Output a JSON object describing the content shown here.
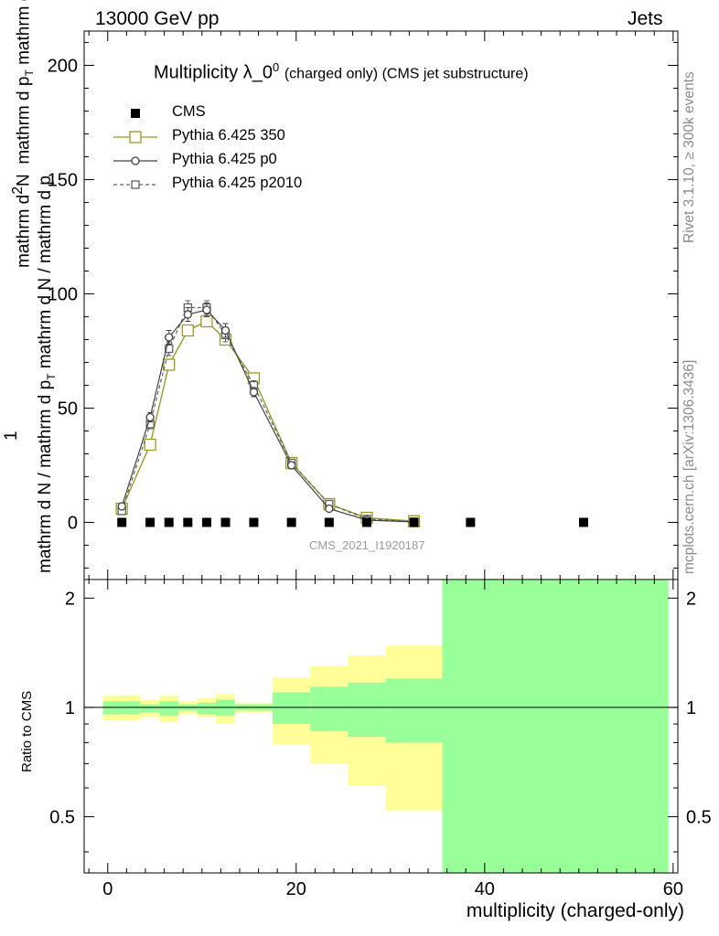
{
  "header": {
    "left": "13000 GeV pp",
    "right": "Jets"
  },
  "title": {
    "main": "Multiplicity λ_0",
    "sup": "0",
    "sub": "(charged only) (CMS jet substructure)"
  },
  "side_labels": {
    "rivet": "Rivet 3.1.10, ≥ 300k events",
    "mcplots": "mcplots.cern.ch [arXiv:1306.3436]"
  },
  "watermark": "CMS_2021_I1920187",
  "axis_labels": {
    "x": "multiplicity (charged-only)",
    "y_ratio": "Ratio to CMS",
    "y_main_one": "1",
    "y_main_top": "mathrm d",
    "y_main_top_sup": "2",
    "y_main_top_end": "N",
    "y_main_mid": "mathrm d p",
    "y_main_mid_sub": "T",
    "y_main_mid_end": " mathrm d lambda",
    "y_main_bottom": "mathrm d N / mathrm d p",
    "y_main_bottom_sub": "T",
    "y_main_bottom_end": " mathrm d N / mathrm d p"
  },
  "legend": [
    {
      "label": "CMS",
      "color": "#000000",
      "style": "filled-square"
    },
    {
      "label": "Pythia 6.425 350",
      "color": "#9a9a20",
      "style": "open-square-solid"
    },
    {
      "label": "Pythia 6.425 p0",
      "color": "#404040",
      "style": "open-circle-solid"
    },
    {
      "label": "Pythia 6.425 p2010",
      "color": "#606060",
      "style": "open-square-dashed"
    }
  ],
  "chart_data": [
    {
      "type": "line",
      "panel": "main",
      "title": "Multiplicity λ_0^0 (charged only) (CMS jet substructure)",
      "xlabel": "multiplicity (charged-only)",
      "ylabel": "1/N dN/dp_T dp_T dλ",
      "xlim": [
        -2.5,
        60.5
      ],
      "ylim": [
        -25,
        215
      ],
      "xticks": [
        0,
        20,
        40,
        60
      ],
      "yticks": [
        0,
        50,
        100,
        150,
        200
      ],
      "series": [
        {
          "name": "CMS",
          "x": [
            1.5,
            4.5,
            6.5,
            8.5,
            10.5,
            12.5,
            15.5,
            19.5,
            23.5,
            27.5,
            32.5,
            38.5,
            50.5
          ],
          "y": [
            0,
            0,
            0,
            0,
            0,
            0,
            0,
            0,
            0,
            0,
            0,
            0,
            0
          ]
        },
        {
          "name": "Pythia 6.425 350",
          "x": [
            1.5,
            4.5,
            6.5,
            8.5,
            10.5,
            12.5,
            15.5,
            19.5,
            23.5,
            27.5,
            32.5
          ],
          "y": [
            6,
            34,
            69,
            84,
            88,
            80,
            63,
            26,
            8,
            2,
            0.5
          ],
          "yerr": [
            0.5,
            1,
            1.5,
            2,
            2,
            2,
            1.5,
            1,
            0.5,
            0.3,
            0.1
          ]
        },
        {
          "name": "Pythia 6.425 p0",
          "x": [
            1.5,
            4.5,
            6.5,
            8.5,
            10.5,
            12.5,
            15.5,
            19.5,
            23.5,
            27.5,
            32.5
          ],
          "y": [
            7,
            46,
            81,
            91,
            93,
            84,
            57,
            25,
            6,
            1,
            0.2
          ],
          "yerr": [
            0.8,
            2,
            3,
            3,
            3,
            3,
            2,
            1.5,
            0.6,
            0.3,
            0.1
          ]
        },
        {
          "name": "Pythia 6.425 p2010",
          "x": [
            1.5,
            4.5,
            6.5,
            8.5,
            10.5,
            12.5,
            15.5,
            19.5,
            23.5,
            27.5,
            32.5
          ],
          "y": [
            5,
            43,
            76,
            94,
            94,
            82,
            60,
            26,
            8,
            1.5,
            0.3
          ],
          "yerr": [
            0.8,
            2,
            3,
            3,
            3,
            3,
            2,
            1.5,
            0.6,
            0.3,
            0.1
          ]
        }
      ]
    },
    {
      "type": "area",
      "panel": "ratio",
      "ylabel": "Ratio to CMS",
      "xlabel": "multiplicity (charged-only)",
      "xlim": [
        -2.5,
        60.5
      ],
      "ylim": [
        0.35,
        2.25
      ],
      "xticks": [
        0,
        20,
        40,
        60
      ],
      "yticks": [
        0.5,
        1,
        2
      ],
      "reference_line": 1,
      "bands": [
        {
          "x0": -0.5,
          "x1": 3.5,
          "yellow": [
            0.92,
            1.08
          ],
          "green": [
            0.96,
            1.04
          ]
        },
        {
          "x0": 3.5,
          "x1": 5.5,
          "yellow": [
            0.94,
            1.05
          ],
          "green": [
            0.97,
            1.02
          ]
        },
        {
          "x0": 5.5,
          "x1": 7.5,
          "yellow": [
            0.91,
            1.08
          ],
          "green": [
            0.95,
            1.04
          ]
        },
        {
          "x0": 7.5,
          "x1": 9.5,
          "yellow": [
            0.96,
            1.04
          ],
          "green": [
            0.98,
            1.02
          ]
        },
        {
          "x0": 9.5,
          "x1": 11.5,
          "yellow": [
            0.94,
            1.06
          ],
          "green": [
            0.96,
            1.03
          ]
        },
        {
          "x0": 11.5,
          "x1": 13.5,
          "yellow": [
            0.9,
            1.09
          ],
          "green": [
            0.95,
            1.05
          ]
        },
        {
          "x0": 13.5,
          "x1": 17.5,
          "yellow": [
            0.97,
            1.03
          ],
          "green": [
            0.98,
            1.02
          ]
        },
        {
          "x0": 17.5,
          "x1": 21.5,
          "yellow": [
            0.79,
            1.21
          ],
          "green": [
            0.9,
            1.1
          ]
        },
        {
          "x0": 21.5,
          "x1": 25.5,
          "yellow": [
            0.7,
            1.3
          ],
          "green": [
            0.86,
            1.14
          ]
        },
        {
          "x0": 25.5,
          "x1": 29.5,
          "yellow": [
            0.61,
            1.39
          ],
          "green": [
            0.83,
            1.17
          ]
        },
        {
          "x0": 29.5,
          "x1": 35.5,
          "yellow": [
            0.52,
            1.48
          ],
          "green": [
            0.8,
            1.2
          ]
        },
        {
          "x0": 35.5,
          "x1": 59.5,
          "yellow": [
            0.35,
            2.25
          ],
          "green": [
            0.35,
            2.25
          ]
        }
      ]
    }
  ]
}
